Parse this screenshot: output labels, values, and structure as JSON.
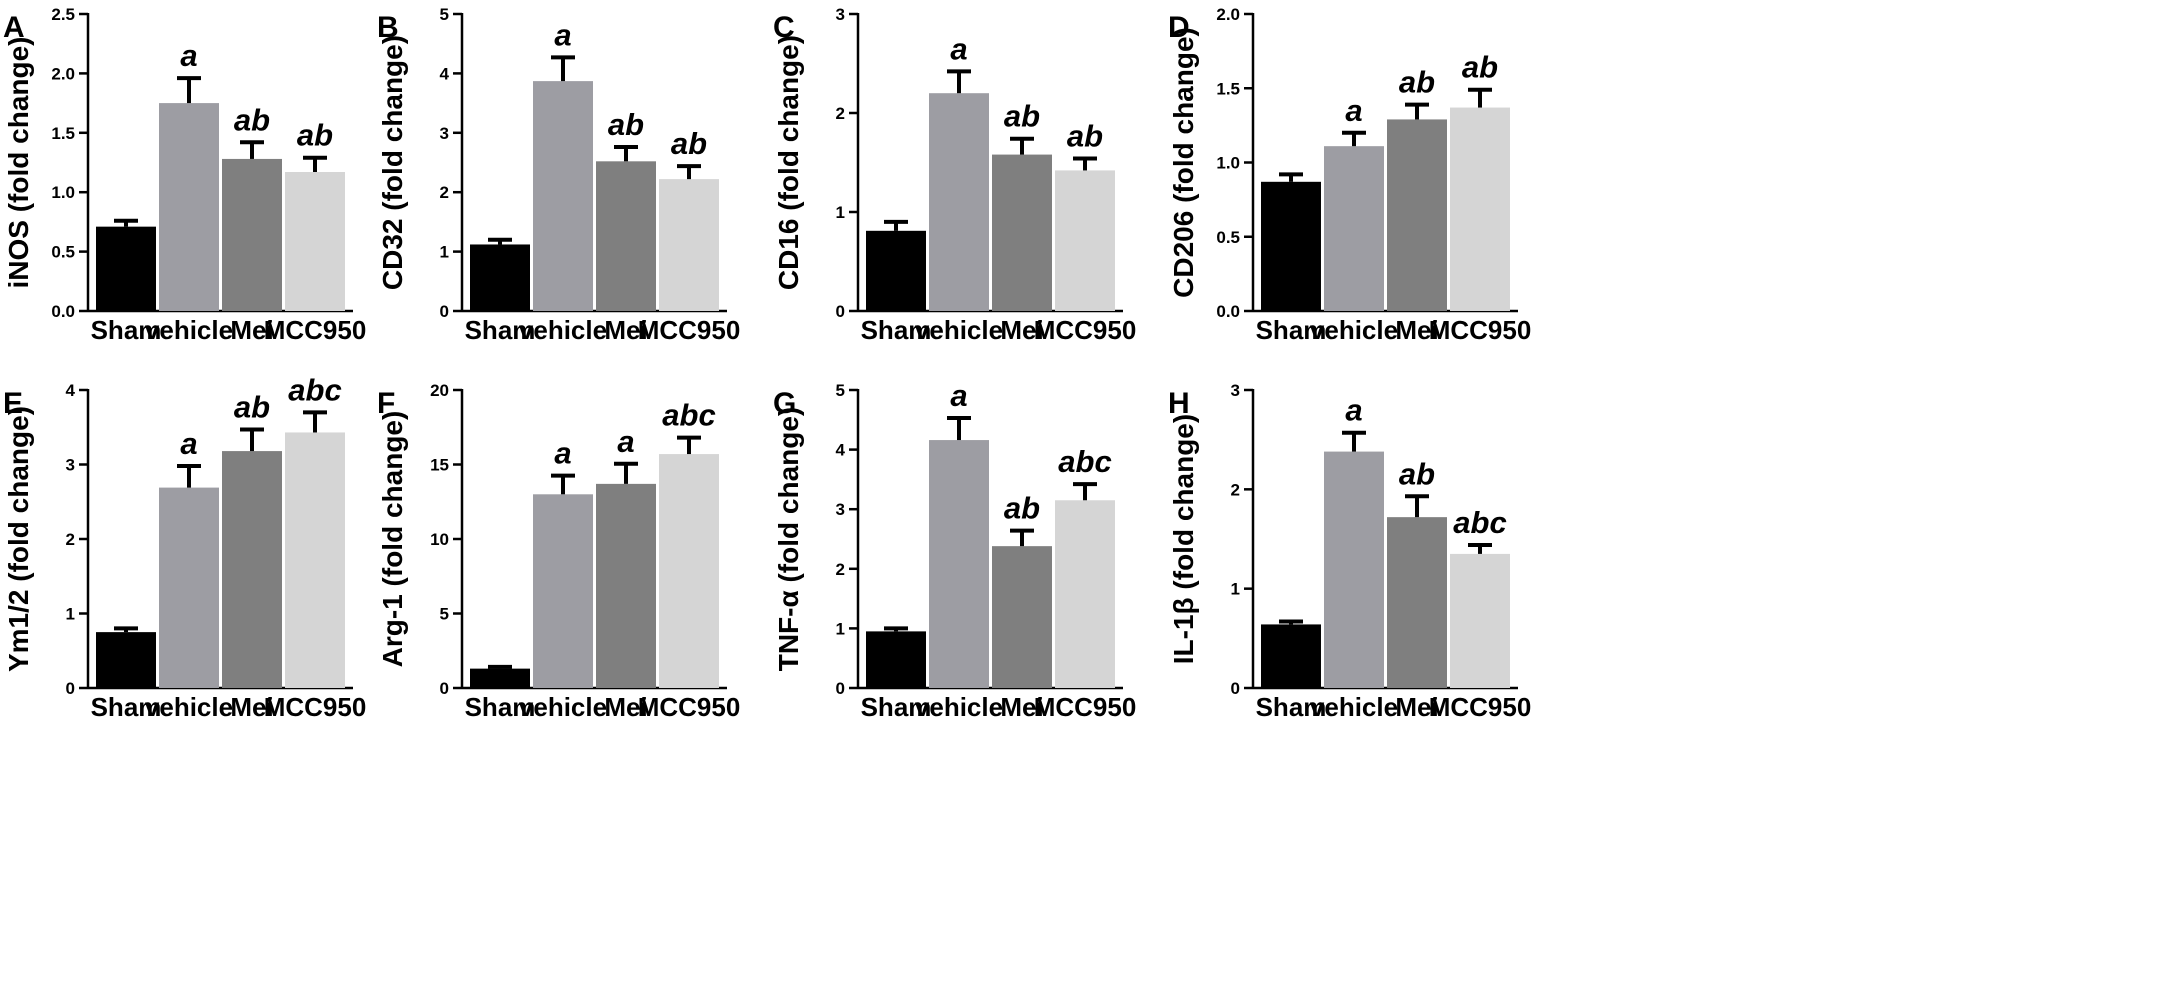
{
  "chart_data": [
    {
      "type": "bar",
      "panel": "A",
      "ylabel": "iNOS (fold change)",
      "ylim": [
        0,
        2.5
      ],
      "yticks": [
        "0.0",
        "0.5",
        "1.0",
        "1.5",
        "2.0",
        "2.5"
      ],
      "categories": [
        "Sham",
        "vehicle",
        "Mei",
        "MCC950"
      ],
      "values": [
        0.71,
        1.75,
        1.28,
        1.17
      ],
      "errors": [
        0.05,
        0.21,
        0.14,
        0.12
      ],
      "significance": [
        "",
        "a",
        "ab",
        "ab"
      ]
    },
    {
      "type": "bar",
      "panel": "B",
      "ylabel": "CD32 (fold change)",
      "ylim": [
        0,
        5
      ],
      "yticks": [
        "0",
        "1",
        "2",
        "3",
        "4",
        "5"
      ],
      "categories": [
        "Sham",
        "vehicle",
        "Mei",
        "MCC950"
      ],
      "values": [
        1.12,
        3.87,
        2.52,
        2.22
      ],
      "errors": [
        0.08,
        0.4,
        0.24,
        0.22
      ],
      "significance": [
        "",
        "a",
        "ab",
        "ab"
      ]
    },
    {
      "type": "bar",
      "panel": "C",
      "ylabel": "CD16 (fold change)",
      "ylim": [
        0,
        3
      ],
      "yticks": [
        "0",
        "1",
        "2",
        "3"
      ],
      "categories": [
        "Sham",
        "vehicle",
        "Mei",
        "MCC950"
      ],
      "values": [
        0.81,
        2.2,
        1.58,
        1.42
      ],
      "errors": [
        0.09,
        0.22,
        0.16,
        0.12
      ],
      "significance": [
        "",
        "a",
        "ab",
        "ab"
      ]
    },
    {
      "type": "bar",
      "panel": "D",
      "ylabel": "CD206 (fold change)",
      "ylim": [
        0,
        2.0
      ],
      "yticks": [
        "0.0",
        "0.5",
        "1.0",
        "1.5",
        "2.0"
      ],
      "categories": [
        "Sham",
        "vehicle",
        "Mei",
        "MCC950"
      ],
      "values": [
        0.87,
        1.11,
        1.29,
        1.37
      ],
      "errors": [
        0.05,
        0.09,
        0.1,
        0.12
      ],
      "significance": [
        "",
        "a",
        "ab",
        "ab"
      ]
    },
    {
      "type": "bar",
      "panel": "E",
      "ylabel": "Ym1/2 (fold change)",
      "ylim": [
        0,
        4
      ],
      "yticks": [
        "0",
        "1",
        "2",
        "3",
        "4"
      ],
      "categories": [
        "Sham",
        "vehicle",
        "Mei",
        "MCC950"
      ],
      "values": [
        0.75,
        2.69,
        3.18,
        3.43
      ],
      "errors": [
        0.05,
        0.29,
        0.29,
        0.27
      ],
      "significance": [
        "",
        "a",
        "ab",
        "abc"
      ]
    },
    {
      "type": "bar",
      "panel": "F",
      "ylabel": "Arg-1 (fold change)",
      "ylim": [
        0,
        20
      ],
      "yticks": [
        "0",
        "5",
        "10",
        "15",
        "20"
      ],
      "categories": [
        "Sham",
        "vehicle",
        "Mei",
        "MCC950"
      ],
      "values": [
        1.3,
        13.0,
        13.7,
        15.7
      ],
      "errors": [
        0.12,
        1.25,
        1.35,
        1.1
      ],
      "significance": [
        "",
        "a",
        "a",
        "abc"
      ]
    },
    {
      "type": "bar",
      "panel": "G",
      "ylabel": "TNF-α (fold change)",
      "ylim": [
        0,
        5
      ],
      "yticks": [
        "0",
        "1",
        "2",
        "3",
        "4",
        "5"
      ],
      "categories": [
        "Sham",
        "vehicle",
        "Mei",
        "MCC950"
      ],
      "values": [
        0.95,
        4.16,
        2.38,
        3.15
      ],
      "errors": [
        0.05,
        0.37,
        0.26,
        0.27
      ],
      "significance": [
        "",
        "a",
        "ab",
        "abc"
      ]
    },
    {
      "type": "bar",
      "panel": "H",
      "ylabel": "IL-1β (fold change)",
      "ylim": [
        0,
        3
      ],
      "yticks": [
        "0",
        "1",
        "2",
        "3"
      ],
      "categories": [
        "Sham",
        "vehicle",
        "Mei",
        "MCC950"
      ],
      "values": [
        0.64,
        2.38,
        1.72,
        1.35
      ],
      "errors": [
        0.03,
        0.19,
        0.21,
        0.09
      ],
      "significance": [
        "",
        "a",
        "ab",
        "abc"
      ]
    }
  ],
  "colors": {
    "series": [
      "#000000",
      "#9d9da3",
      "#7f7f7f",
      "#d5d5d5"
    ],
    "axis": "#000000"
  }
}
